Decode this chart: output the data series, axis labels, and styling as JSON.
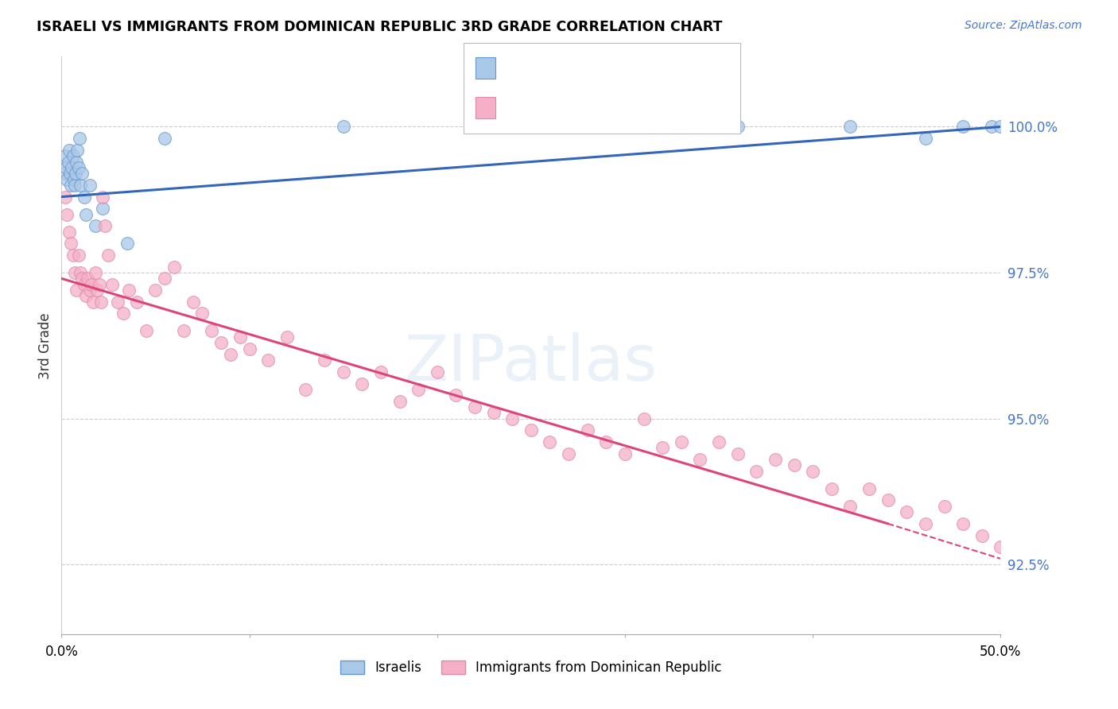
{
  "title": "ISRAELI VS IMMIGRANTS FROM DOMINICAN REPUBLIC 3RD GRADE CORRELATION CHART",
  "source": "Source: ZipAtlas.com",
  "ylabel": "3rd Grade",
  "y_ticks": [
    92.5,
    95.0,
    97.5,
    100.0
  ],
  "y_tick_labels": [
    "92.5%",
    "95.0%",
    "97.5%",
    "100.0%"
  ],
  "x_range": [
    0.0,
    50.0
  ],
  "y_range": [
    91.3,
    101.2
  ],
  "israelis_color": "#aac8e8",
  "israelis_edge_color": "#6699cc",
  "dominican_color": "#f5b0c8",
  "dominican_edge_color": "#e088aa",
  "israelis_line_color": "#3366bb",
  "dominican_line_color": "#dd4477",
  "watermark": "ZIPatlas",
  "marker_size": 130,
  "israelis_x": [
    0.15,
    0.2,
    0.25,
    0.3,
    0.35,
    0.4,
    0.45,
    0.5,
    0.55,
    0.6,
    0.65,
    0.7,
    0.75,
    0.8,
    0.85,
    0.9,
    0.95,
    1.0,
    1.1,
    1.2,
    1.3,
    1.5,
    1.8,
    2.2,
    3.5,
    5.5,
    15.0,
    22.0,
    29.0,
    36.0,
    42.0,
    46.0,
    48.0,
    49.5,
    50.0
  ],
  "israelis_y": [
    99.2,
    99.5,
    99.3,
    99.1,
    99.4,
    99.6,
    99.2,
    99.0,
    99.3,
    99.5,
    99.1,
    99.0,
    99.2,
    99.4,
    99.6,
    99.3,
    99.8,
    99.0,
    99.2,
    98.8,
    98.5,
    99.0,
    98.3,
    98.6,
    98.0,
    99.8,
    100.0,
    100.0,
    100.0,
    100.0,
    100.0,
    99.8,
    100.0,
    100.0,
    100.0
  ],
  "dominican_x": [
    0.2,
    0.3,
    0.4,
    0.5,
    0.6,
    0.7,
    0.8,
    0.9,
    1.0,
    1.1,
    1.2,
    1.3,
    1.4,
    1.5,
    1.6,
    1.7,
    1.8,
    1.9,
    2.0,
    2.1,
    2.2,
    2.3,
    2.5,
    2.7,
    3.0,
    3.3,
    3.6,
    4.0,
    4.5,
    5.0,
    5.5,
    6.0,
    6.5,
    7.0,
    7.5,
    8.0,
    8.5,
    9.0,
    9.5,
    10.0,
    11.0,
    12.0,
    13.0,
    14.0,
    15.0,
    16.0,
    17.0,
    18.0,
    19.0,
    20.0,
    21.0,
    22.0,
    23.0,
    24.0,
    25.0,
    26.0,
    27.0,
    28.0,
    29.0,
    30.0,
    31.0,
    32.0,
    33.0,
    34.0,
    35.0,
    36.0,
    37.0,
    38.0,
    39.0,
    40.0,
    41.0,
    42.0,
    43.0,
    44.0,
    45.0,
    46.0,
    47.0,
    48.0,
    49.0,
    50.0,
    51.0,
    52.0
  ],
  "dominican_y": [
    98.8,
    98.5,
    98.2,
    98.0,
    97.8,
    97.5,
    97.2,
    97.8,
    97.5,
    97.4,
    97.3,
    97.1,
    97.4,
    97.2,
    97.3,
    97.0,
    97.5,
    97.2,
    97.3,
    97.0,
    98.8,
    98.3,
    97.8,
    97.3,
    97.0,
    96.8,
    97.2,
    97.0,
    96.5,
    97.2,
    97.4,
    97.6,
    96.5,
    97.0,
    96.8,
    96.5,
    96.3,
    96.1,
    96.4,
    96.2,
    96.0,
    96.4,
    95.5,
    96.0,
    95.8,
    95.6,
    95.8,
    95.3,
    95.5,
    95.8,
    95.4,
    95.2,
    95.1,
    95.0,
    94.8,
    94.6,
    94.4,
    94.8,
    94.6,
    94.4,
    95.0,
    94.5,
    94.6,
    94.3,
    94.6,
    94.4,
    94.1,
    94.3,
    94.2,
    94.1,
    93.8,
    93.5,
    93.8,
    93.6,
    93.4,
    93.2,
    93.5,
    93.2,
    93.0,
    92.8,
    92.6,
    92.5
  ],
  "israeli_line_x0": 0.0,
  "israeli_line_x1": 50.0,
  "israeli_line_y0": 98.8,
  "israeli_line_y1": 100.0,
  "dominican_line_x0": 0.0,
  "dominican_line_x1": 44.0,
  "dominican_line_y0": 97.4,
  "dominican_line_y1": 93.2,
  "dominican_dash_x0": 44.0,
  "dominican_dash_x1": 51.0,
  "dominican_dash_y0": 93.2,
  "dominican_dash_y1": 92.5
}
